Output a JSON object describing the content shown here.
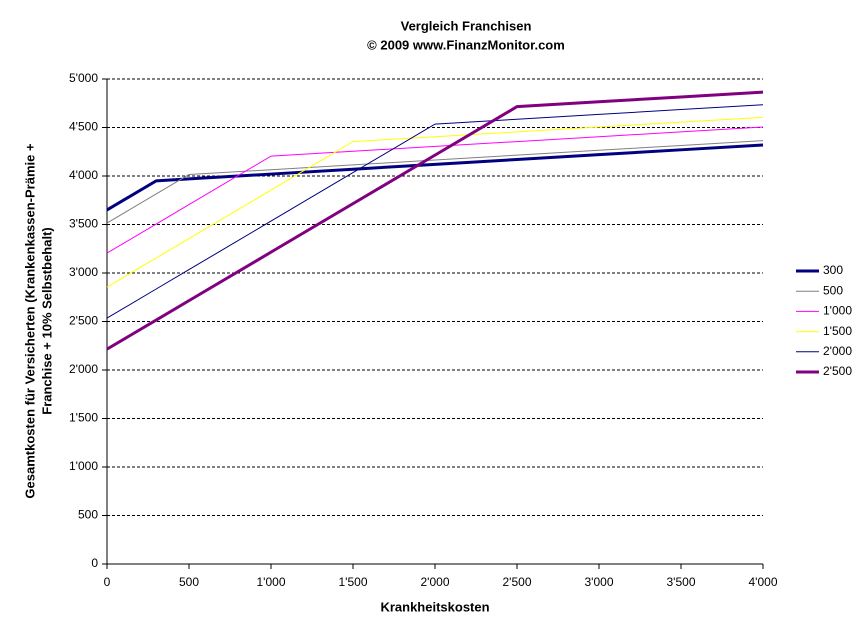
{
  "chart_data": {
    "type": "line",
    "title": "Vergleich Franchisen",
    "subtitle": "© 2009 www.FinanzMonitor.com",
    "x_label": "Krankheitskosten",
    "y_label": [
      "Gesamtkosten für Versicherten (Krankenkassen-Prämie +",
      "Franchise + 10% Selbstbehalt)"
    ],
    "x": [
      0,
      300,
      500,
      1000,
      1500,
      2000,
      2500,
      3000,
      3500,
      4000
    ],
    "series": [
      {
        "name": "300",
        "color": "#000080",
        "line_width": 3,
        "values": [
          3650,
          3950,
          3970,
          4020,
          4070,
          4120,
          4170,
          4220,
          4270,
          4320
        ]
      },
      {
        "name": "500",
        "color": "#808080",
        "line_width": 1,
        "values": [
          3515,
          3815,
          4015,
          4065,
          4115,
          4165,
          4215,
          4265,
          4315,
          4365
        ]
      },
      {
        "name": "1'000",
        "color": "#ff00ff",
        "line_width": 1,
        "values": [
          3205,
          3505,
          3705,
          4205,
          4255,
          4305,
          4355,
          4405,
          4455,
          4505
        ]
      },
      {
        "name": "1'500",
        "color": "#ffff00",
        "line_width": 1,
        "values": [
          2855,
          3155,
          3355,
          3855,
          4355,
          4405,
          4455,
          4505,
          4555,
          4605
        ]
      },
      {
        "name": "2'000",
        "color": "#000080",
        "line_width": 1,
        "values": [
          2535,
          2835,
          3035,
          3535,
          4035,
          4535,
          4585,
          4635,
          4685,
          4735
        ]
      },
      {
        "name": "2'500",
        "color": "#800080",
        "line_width": 3,
        "values": [
          2215,
          2515,
          2715,
          3215,
          3715,
          4215,
          4715,
          4765,
          4815,
          4865
        ]
      }
    ],
    "xlim": [
      0,
      4000
    ],
    "xticks": [
      0,
      500,
      {
        "value": 1000,
        "label": "1'000"
      },
      {
        "value": 1500,
        "label": "1'500"
      },
      {
        "value": 2000,
        "label": "2'000"
      },
      {
        "value": 2500,
        "label": "2'500"
      },
      {
        "value": 3000,
        "label": "3'000"
      },
      {
        "value": 3500,
        "label": "3'500"
      },
      {
        "value": 4000,
        "label": "4'000"
      }
    ],
    "ylim": [
      0,
      5000
    ],
    "yticks": [
      0,
      500,
      {
        "value": 1000,
        "label": "1'000"
      },
      {
        "value": 1500,
        "label": "1'500"
      },
      {
        "value": 2000,
        "label": "2'000"
      },
      {
        "value": 2500,
        "label": "2'500"
      },
      {
        "value": 3000,
        "label": "3'000"
      },
      {
        "value": 3500,
        "label": "3'500"
      },
      {
        "value": 4000,
        "label": "4'000"
      },
      {
        "value": 4500,
        "label": "4'500"
      },
      {
        "value": 5000,
        "label": "5'000"
      }
    ],
    "grid": true,
    "legend": "right"
  }
}
